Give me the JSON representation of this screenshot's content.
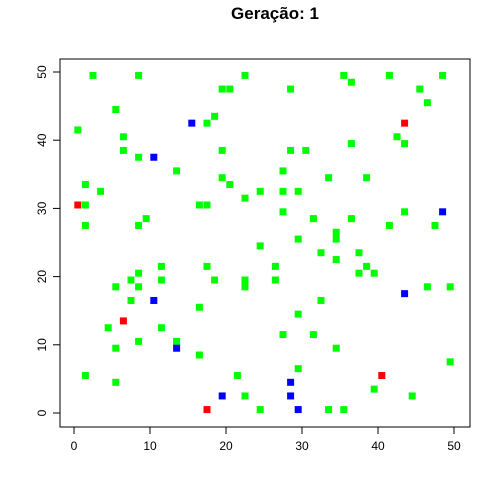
{
  "chart_data": {
    "type": "scatter",
    "title": "Geração: 1",
    "xlabel": "",
    "ylabel": "",
    "xlim": [
      0,
      50
    ],
    "ylim": [
      0,
      50
    ],
    "x_ticks": [
      0,
      10,
      20,
      30,
      40,
      50
    ],
    "y_ticks": [
      0,
      10,
      20,
      30,
      40,
      50
    ],
    "grid": false,
    "legend": "none",
    "series": [
      {
        "color": "#00ff00",
        "points": [
          [
            2.5,
            49.5
          ],
          [
            8.5,
            49.5
          ],
          [
            22.5,
            49.5
          ],
          [
            35.5,
            49.5
          ],
          [
            41.5,
            49.5
          ],
          [
            48.5,
            49.5
          ],
          [
            36.5,
            48.5
          ],
          [
            19.5,
            47.5
          ],
          [
            20.5,
            47.5
          ],
          [
            28.5,
            47.5
          ],
          [
            45.5,
            47.5
          ],
          [
            46.5,
            45.5
          ],
          [
            5.5,
            44.5
          ],
          [
            18.5,
            43.5
          ],
          [
            17.5,
            42.5
          ],
          [
            0.5,
            41.5
          ],
          [
            6.5,
            40.5
          ],
          [
            42.5,
            40.5
          ],
          [
            36.5,
            39.5
          ],
          [
            43.5,
            39.5
          ],
          [
            6.5,
            38.5
          ],
          [
            19.5,
            38.5
          ],
          [
            28.5,
            38.5
          ],
          [
            30.5,
            38.5
          ],
          [
            8.5,
            37.5
          ],
          [
            13.5,
            35.5
          ],
          [
            27.5,
            35.5
          ],
          [
            19.5,
            34.5
          ],
          [
            33.5,
            34.5
          ],
          [
            38.5,
            34.5
          ],
          [
            1.5,
            33.5
          ],
          [
            20.5,
            33.5
          ],
          [
            3.5,
            32.5
          ],
          [
            24.5,
            32.5
          ],
          [
            27.5,
            32.5
          ],
          [
            29.5,
            32.5
          ],
          [
            22.5,
            31.5
          ],
          [
            1.5,
            30.5
          ],
          [
            16.5,
            30.5
          ],
          [
            17.5,
            30.5
          ],
          [
            27.5,
            29.5
          ],
          [
            43.5,
            29.5
          ],
          [
            9.5,
            28.5
          ],
          [
            31.5,
            28.5
          ],
          [
            36.5,
            28.5
          ],
          [
            1.5,
            27.5
          ],
          [
            8.5,
            27.5
          ],
          [
            41.5,
            27.5
          ],
          [
            47.5,
            27.5
          ],
          [
            34.5,
            26.5
          ],
          [
            29.5,
            25.5
          ],
          [
            34.5,
            25.5
          ],
          [
            24.5,
            24.5
          ],
          [
            32.5,
            23.5
          ],
          [
            37.5,
            23.5
          ],
          [
            34.5,
            22.5
          ],
          [
            11.5,
            21.5
          ],
          [
            17.5,
            21.5
          ],
          [
            26.5,
            21.5
          ],
          [
            38.5,
            21.5
          ],
          [
            8.5,
            20.5
          ],
          [
            37.5,
            20.5
          ],
          [
            39.5,
            20.5
          ],
          [
            7.5,
            19.5
          ],
          [
            11.5,
            19.5
          ],
          [
            18.5,
            19.5
          ],
          [
            22.5,
            19.5
          ],
          [
            26.5,
            19.5
          ],
          [
            5.5,
            18.5
          ],
          [
            8.5,
            18.5
          ],
          [
            22.5,
            18.5
          ],
          [
            46.5,
            18.5
          ],
          [
            49.5,
            18.5
          ],
          [
            7.5,
            16.5
          ],
          [
            32.5,
            16.5
          ],
          [
            16.5,
            15.5
          ],
          [
            29.5,
            14.5
          ],
          [
            4.5,
            12.5
          ],
          [
            11.5,
            12.5
          ],
          [
            27.5,
            11.5
          ],
          [
            31.5,
            11.5
          ],
          [
            8.5,
            10.5
          ],
          [
            13.5,
            10.5
          ],
          [
            5.5,
            9.5
          ],
          [
            34.5,
            9.5
          ],
          [
            16.5,
            8.5
          ],
          [
            49.5,
            7.5
          ],
          [
            29.5,
            6.5
          ],
          [
            1.5,
            5.5
          ],
          [
            21.5,
            5.5
          ],
          [
            5.5,
            4.5
          ],
          [
            39.5,
            3.5
          ],
          [
            22.5,
            2.5
          ],
          [
            44.5,
            2.5
          ],
          [
            24.5,
            0.5
          ],
          [
            33.5,
            0.5
          ],
          [
            35.5,
            0.5
          ]
        ]
      },
      {
        "color": "#ff0000",
        "points": [
          [
            43.5,
            42.5
          ],
          [
            0.5,
            30.5
          ],
          [
            6.5,
            13.5
          ],
          [
            40.5,
            5.5
          ],
          [
            17.5,
            0.5
          ]
        ]
      },
      {
        "color": "#0000ff",
        "points": [
          [
            15.5,
            42.5
          ],
          [
            10.5,
            37.5
          ],
          [
            48.5,
            29.5
          ],
          [
            43.5,
            17.5
          ],
          [
            10.5,
            16.5
          ],
          [
            13.5,
            9.5
          ],
          [
            28.5,
            4.5
          ],
          [
            19.5,
            2.5
          ],
          [
            28.5,
            2.5
          ],
          [
            29.5,
            0.5
          ]
        ]
      }
    ]
  }
}
